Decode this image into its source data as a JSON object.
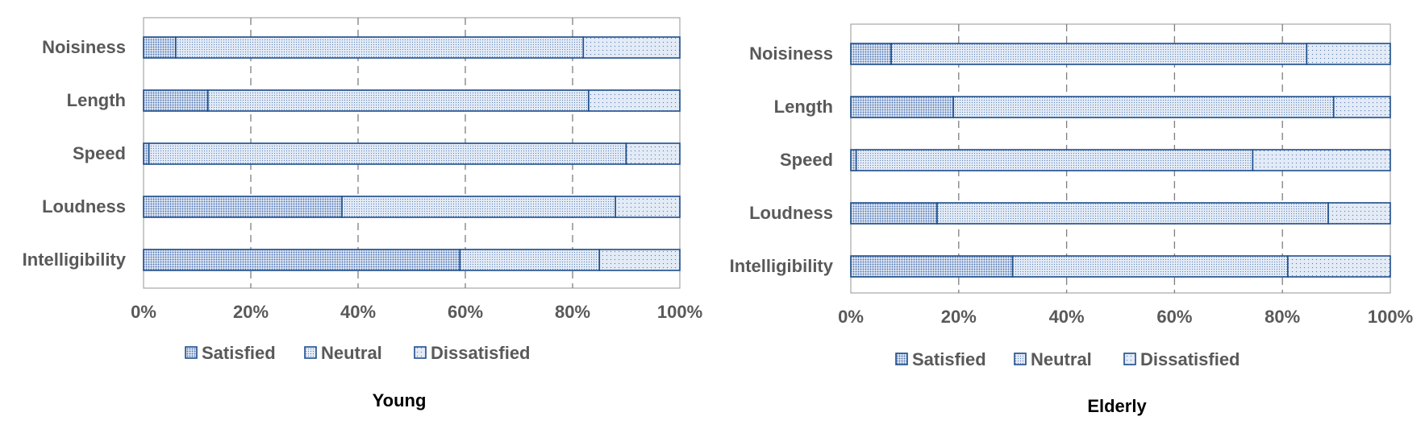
{
  "colors": {
    "bar_edge": "#1f4e8c",
    "fill_base": "#e3ebf6",
    "dot": "#2e5aa3",
    "grid": "#7f7f7f",
    "axis": "#a6a6a6"
  },
  "chart_data": [
    {
      "type": "bar",
      "orientation": "horizontal",
      "stacked": true,
      "title": "Young",
      "categories": [
        "Noisiness",
        "Length",
        "Speed",
        "Loudness",
        "Intelligibility"
      ],
      "series": [
        {
          "name": "Satisfied",
          "values": [
            6,
            12,
            1,
            37,
            59
          ]
        },
        {
          "name": "Neutral",
          "values": [
            76,
            71,
            89,
            51,
            26
          ]
        },
        {
          "name": "Dissatisfied",
          "values": [
            18,
            17,
            10,
            12,
            15
          ]
        }
      ],
      "xticks": [
        "0%",
        "20%",
        "40%",
        "60%",
        "80%",
        "100%"
      ],
      "xlim": [
        0,
        100
      ],
      "grid": true,
      "legend": "bottom"
    },
    {
      "type": "bar",
      "orientation": "horizontal",
      "stacked": true,
      "title": "Elderly",
      "categories": [
        "Noisiness",
        "Length",
        "Speed",
        "Loudness",
        "Intelligibility"
      ],
      "series": [
        {
          "name": "Satisfied",
          "values": [
            7.5,
            19,
            1,
            16,
            30
          ]
        },
        {
          "name": "Neutral",
          "values": [
            77,
            70.5,
            73.5,
            72.5,
            51
          ]
        },
        {
          "name": "Dissatisfied",
          "values": [
            15.5,
            10.5,
            25.5,
            11.5,
            19
          ]
        }
      ],
      "xticks": [
        "0%",
        "20%",
        "40%",
        "60%",
        "80%",
        "100%"
      ],
      "xlim": [
        0,
        100
      ],
      "grid": true,
      "legend": "bottom"
    }
  ]
}
